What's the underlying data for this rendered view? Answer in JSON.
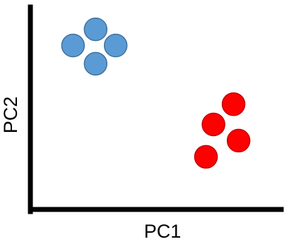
{
  "chart_data": {
    "type": "scatter",
    "xlabel": "PC1",
    "ylabel": "PC2",
    "xlim": [
      0,
      10
    ],
    "ylim": [
      0,
      10
    ],
    "grid": false,
    "legend": "none",
    "ticks": false,
    "series": [
      {
        "color": "#5b9bd5",
        "stroke": "#41719c",
        "points": [
          {
            "x": 2.6,
            "y": 8.9
          },
          {
            "x": 1.7,
            "y": 8.1
          },
          {
            "x": 3.4,
            "y": 8.1
          },
          {
            "x": 2.6,
            "y": 7.2
          }
        ]
      },
      {
        "color": "#ff0000",
        "stroke": "#c00000",
        "points": [
          {
            "x": 8.1,
            "y": 5.2
          },
          {
            "x": 7.3,
            "y": 4.2
          },
          {
            "x": 8.3,
            "y": 3.4
          },
          {
            "x": 7.0,
            "y": 2.6
          }
        ]
      }
    ]
  }
}
